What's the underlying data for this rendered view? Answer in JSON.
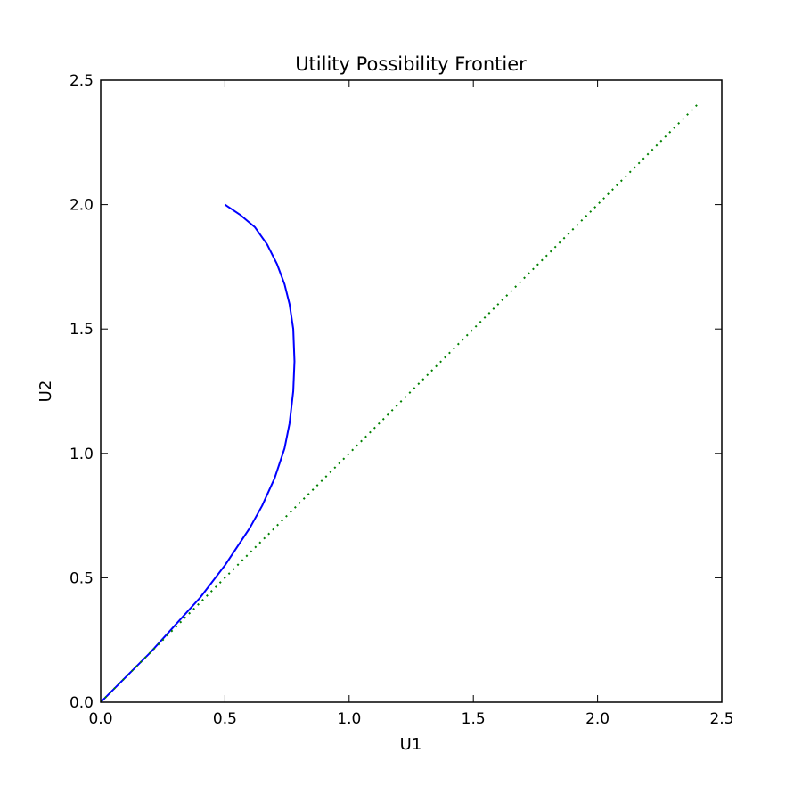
{
  "chart_data": {
    "type": "line",
    "title": "Utility Possibility Frontier",
    "xlabel": "U1",
    "ylabel": "U2",
    "xlim": [
      0.0,
      2.5
    ],
    "ylim": [
      0.0,
      2.5
    ],
    "xticks": [
      "0.0",
      "0.5",
      "1.0",
      "1.5",
      "2.0",
      "2.5"
    ],
    "yticks": [
      "0.0",
      "0.5",
      "1.0",
      "1.5",
      "2.0",
      "2.5"
    ],
    "xtick_values": [
      0.0,
      0.5,
      1.0,
      1.5,
      2.0,
      2.5
    ],
    "ytick_values": [
      0.0,
      0.5,
      1.0,
      1.5,
      2.0,
      2.5
    ],
    "grid": false,
    "series": [
      {
        "style": "solid",
        "color": "#0000ff",
        "x": [
          0.0,
          0.1,
          0.2,
          0.3,
          0.4,
          0.5,
          0.6,
          0.65,
          0.7,
          0.74,
          0.76,
          0.775,
          0.78,
          0.775,
          0.76,
          0.74,
          0.71,
          0.67,
          0.62,
          0.56,
          0.5
        ],
        "y": [
          0.0,
          0.1,
          0.2,
          0.31,
          0.42,
          0.55,
          0.7,
          0.79,
          0.9,
          1.02,
          1.12,
          1.25,
          1.37,
          1.5,
          1.6,
          1.68,
          1.76,
          1.84,
          1.91,
          1.96,
          2.0
        ]
      },
      {
        "style": "dotted",
        "color": "#008000",
        "x": [
          0.0,
          2.4
        ],
        "y": [
          0.0,
          2.4
        ]
      }
    ]
  }
}
